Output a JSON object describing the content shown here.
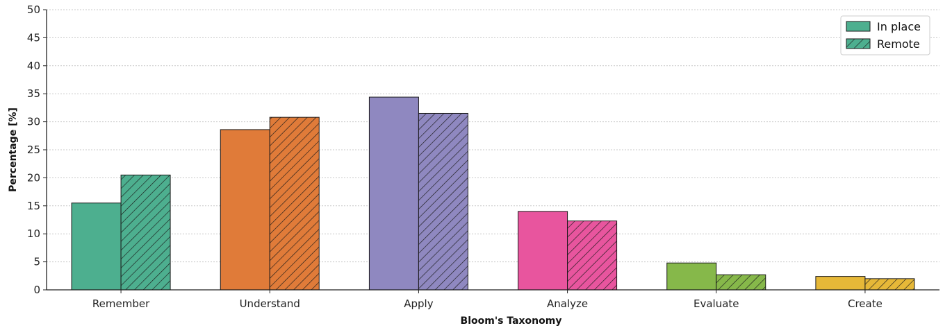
{
  "chart_data": {
    "type": "bar",
    "title": "",
    "xlabel": "Bloom's Taxonomy",
    "ylabel": "Percentage [%]",
    "ylim": [
      0,
      50
    ],
    "yticks": [
      0,
      5,
      10,
      15,
      20,
      25,
      30,
      35,
      40,
      45,
      50
    ],
    "grid": "horizontal dotted",
    "legend_position": "top-right",
    "categories": [
      "Remember",
      "Understand",
      "Apply",
      "Analyze",
      "Evaluate",
      "Create"
    ],
    "category_colors": [
      "#4daf8f",
      "#e07b39",
      "#8f88c0",
      "#e8559e",
      "#86b84a",
      "#e6b838"
    ],
    "series": [
      {
        "name": "In place",
        "pattern": "solid",
        "values": [
          15.5,
          28.6,
          34.4,
          14.0,
          4.8,
          2.4
        ]
      },
      {
        "name": "Remote",
        "pattern": "hatched",
        "values": [
          20.5,
          30.8,
          31.5,
          12.3,
          2.7,
          2.0
        ]
      }
    ],
    "legend": [
      {
        "label": "In place",
        "pattern": "solid",
        "color": "#4daf8f"
      },
      {
        "label": "Remote",
        "pattern": "hatched",
        "color": "#4daf8f"
      }
    ]
  }
}
